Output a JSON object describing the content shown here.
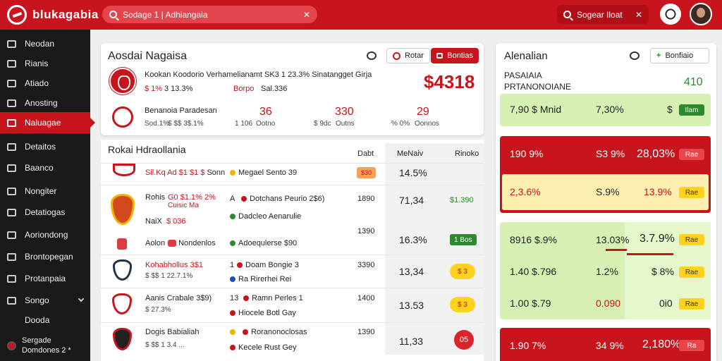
{
  "app": {
    "logo_text": "blukagabia"
  },
  "header": {
    "search_value": "Sodage 1 | Adhiangaia",
    "search2_label": "Sogear Iloat"
  },
  "sidebar": {
    "items": [
      {
        "label": "Neodan",
        "icon": "grid-icon"
      },
      {
        "label": "Rianis",
        "icon": "pin-icon"
      },
      {
        "label": "Atiado",
        "icon": "book-icon"
      },
      {
        "label": "Anosting",
        "icon": "monitor-icon"
      },
      {
        "label": "Naluagae",
        "icon": "home-icon"
      },
      {
        "label": "Detaitos",
        "icon": "box-icon"
      },
      {
        "label": "Baanco",
        "icon": "tag-icon"
      },
      {
        "label": "Nongiter",
        "icon": "card-icon"
      },
      {
        "label": "Detatiogas",
        "icon": "chat-icon"
      },
      {
        "label": "Aoriondong",
        "icon": "doc-icon"
      },
      {
        "label": "Brontopegan",
        "icon": "folder-icon"
      },
      {
        "label": "Protanpaia",
        "icon": "share-icon"
      },
      {
        "label": "Songo",
        "icon": "settings-icon"
      },
      {
        "label": "Dooda",
        "icon": ""
      }
    ],
    "footer": {
      "line1": "Sergade",
      "line2": "Domdones 2 *"
    }
  },
  "featured": {
    "title": "Aosdai Nagaisa",
    "btn_outline": "Rotar",
    "btn_red": "Bontias",
    "match1": {
      "name": "Kookan Koodorio Verhamelianamt SK3 1 23.3% Sinatangget Girja",
      "stat1": "$ 1%",
      "stat2": "3 13.3%",
      "stat3": "Borpo",
      "stat4": "Sal.336",
      "big": "$4318"
    },
    "match2": {
      "name": "Benanoia Paradesan",
      "sub1": "Sod.1%",
      "sub2": "$ $$ 3$.1%",
      "col1_value": "36",
      "col1_a": "1 106",
      "col1_b": "Ootno",
      "col2_value": "330",
      "col2_a": "$ 9dc",
      "col2_b": "Outns",
      "col3_value": "29",
      "col3_a": "% 0%",
      "col3_b": "Oonnos"
    }
  },
  "table": {
    "title": "Rokai Hdraollania",
    "headers": [
      "Dabt",
      "MeNaiv",
      "Rinoko"
    ],
    "rows": [
      {
        "team": "Sil.Kq Ad $1 $1 $",
        "team_extra": "Sonn",
        "event": "Megael Sento 39",
        "event_dot": "#e6b800",
        "odd": "$30",
        "value": "14.5%"
      },
      {
        "team": "Rohis",
        "team_red": "G0 $1.1% 2%",
        "team_sub": "Cuisic Ma",
        "team_sub2": "NaiX",
        "team_sub3": "$ 036",
        "team_sub4": "Aolon",
        "team_badge": "Nondenlos",
        "event_prefix": "A",
        "event": "Dotchans Peurio 2$6)",
        "event2": "Dadcleo Aenarulie",
        "event3": "Adoequlerse $90",
        "odd": "1890",
        "odd2": "1390",
        "value": "71,34",
        "value_note": "$1.390",
        "value2": "16.3%",
        "pill": "1 Bos"
      },
      {
        "team": "Kohabhollus 3$1",
        "team_sub": "$ $$ 1 22.7.1%",
        "event_prefix": "1",
        "event": "Doam Bongie 3",
        "event2": "Ra Rirerhei Rei",
        "odd": "3390",
        "value": "13,34",
        "pill": "$ 3"
      },
      {
        "team": "Aanis Crabale 3$9)",
        "team_sub": "$ 27.3%",
        "event_prefix": "13",
        "event": "Ramn Perles 1",
        "event2": "Hiocele Botl Gay",
        "odd": "1400",
        "value": "13.53",
        "pill": "$ 3"
      },
      {
        "team": "Dogis Babialiah",
        "team_sub": "$ $$ 1 3.4 ...",
        "event_prefix": "",
        "event": "Roranonoclosas",
        "event2": "Kecele Rust Gey",
        "odd": "1390",
        "value": "11,33",
        "pill": "05"
      }
    ]
  },
  "right": {
    "title": "Alenalian",
    "button": "Bonfiaio",
    "sub1": "PASAIAIA",
    "sub2": "PRTANONOIANE",
    "sub_value": "410",
    "blocks": [
      {
        "left": "7,90 $ Mnid",
        "mid": "7,30%",
        "right": "$",
        "pill": "Ilam"
      },
      {
        "left": "190 9%",
        "mid": "S3 9%",
        "right": "28,03%",
        "pill": "Rae"
      },
      {
        "left": "2,3.6%",
        "mid": "S.9%",
        "right": "13.9%",
        "pill": "Rae"
      },
      {
        "left": "8916 $.9%",
        "mid": "13.03%",
        "right": "3.7.9%",
        "pill": "Rae"
      },
      {
        "left": "1.40 $.796",
        "mid": "1.2%",
        "right": "$ 8%",
        "pill": "Rae"
      },
      {
        "left": "1.00 $.79",
        "mid": "0.090",
        "right": "0i0",
        "pill": "Rae"
      },
      {
        "left": "1.90 7%",
        "mid": "34 9%",
        "right": "2,180%",
        "pill": "Ra"
      }
    ]
  }
}
